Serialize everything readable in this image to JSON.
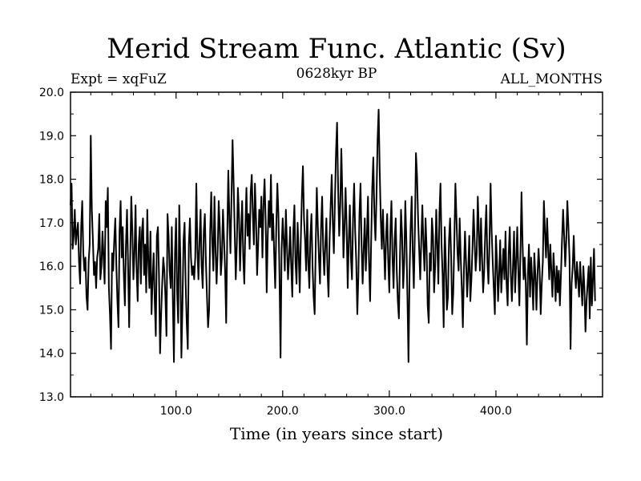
{
  "chart_data": {
    "type": "line",
    "title": "Merid Stream Func. Atlantic (Sv)",
    "subtitle_left": "Expt = xqFuZ",
    "subtitle_center": "0628kyr BP",
    "subtitle_right": "ALL_MONTHS",
    "xlabel": "Time (in years since start)",
    "ylabel": "",
    "xlim": [
      1,
      500
    ],
    "ylim": [
      13.0,
      20.0
    ],
    "x_ticks": [
      100,
      200,
      300,
      400
    ],
    "x_tick_labels": [
      "100.0",
      "200.0",
      "300.0",
      "400.0"
    ],
    "y_ticks": [
      13,
      14,
      15,
      16,
      17,
      18,
      19,
      20
    ],
    "y_tick_labels": [
      "13.0",
      "14.0",
      "15.0",
      "16.0",
      "17.0",
      "18.0",
      "19.0",
      "20.0"
    ],
    "grid": false,
    "color": "#000000",
    "series": [
      {
        "name": "Merid Stream Func. Atlantic",
        "x_start": 1,
        "x_step": 1,
        "values": [
          17.4,
          17.9,
          16.4,
          16.7,
          17.3,
          16.5,
          16.8,
          17.0,
          16.1,
          15.6,
          16.9,
          17.5,
          16.3,
          15.9,
          16.2,
          15.3,
          15.0,
          16.1,
          16.5,
          19.0,
          17.3,
          16.6,
          15.8,
          16.1,
          15.5,
          16.2,
          16.4,
          17.2,
          15.7,
          16.0,
          16.8,
          16.2,
          15.6,
          17.5,
          16.9,
          17.8,
          15.5,
          14.9,
          14.1,
          16.3,
          15.9,
          16.6,
          17.1,
          16.0,
          15.2,
          14.6,
          16.8,
          17.5,
          16.2,
          16.9,
          15.8,
          15.1,
          16.5,
          17.3,
          16.0,
          14.6,
          16.2,
          17.6,
          16.8,
          15.7,
          16.3,
          17.4,
          15.9,
          15.2,
          16.5,
          16.9,
          15.6,
          16.8,
          17.1,
          15.8,
          16.5,
          15.4,
          17.3,
          16.1,
          15.5,
          16.8,
          14.9,
          15.7,
          16.3,
          15.2,
          14.4,
          16.7,
          16.9,
          15.8,
          14.0,
          14.9,
          15.6,
          16.2,
          15.9,
          15.3,
          14.4,
          17.2,
          16.7,
          15.9,
          15.5,
          16.9,
          15.2,
          13.8,
          16.3,
          17.1,
          15.4,
          14.7,
          17.4,
          16.2,
          13.9,
          15.1,
          16.6,
          17.0,
          15.6,
          14.7,
          14.1,
          16.5,
          17.1,
          16.2,
          15.8,
          16.0,
          15.7,
          16.2,
          17.9,
          16.4,
          15.7,
          16.6,
          17.3,
          16.0,
          15.5,
          16.8,
          17.2,
          16.1,
          15.3,
          14.6,
          15.0,
          16.8,
          17.7,
          16.5,
          15.9,
          17.6,
          16.4,
          15.6,
          16.3,
          17.5,
          16.9,
          15.8,
          16.2,
          17.3,
          16.6,
          15.9,
          14.7,
          16.7,
          18.2,
          17.1,
          16.3,
          17.6,
          18.9,
          17.9,
          16.8,
          15.7,
          16.5,
          17.8,
          17.2,
          15.9,
          16.8,
          17.5,
          16.2,
          15.6,
          16.9,
          17.8,
          16.7,
          17.2,
          16.4,
          17.7,
          18.1,
          17.2,
          16.5,
          17.9,
          17.1,
          15.8,
          16.5,
          17.3,
          16.9,
          17.6,
          16.2,
          17.4,
          18.0,
          17.1,
          15.4,
          16.7,
          17.5,
          16.9,
          18.1,
          16.6,
          17.2,
          16.3,
          15.5,
          16.9,
          17.9,
          17.2,
          15.8,
          13.9,
          16.4,
          17.1,
          16.6,
          15.9,
          17.3,
          16.5,
          15.7,
          16.2,
          16.9,
          16.0,
          15.3,
          16.8,
          17.4,
          16.1,
          15.6,
          17.0,
          16.3,
          15.4,
          16.6,
          17.6,
          18.3,
          17.1,
          16.6,
          15.9,
          17.3,
          16.1,
          15.5,
          16.7,
          17.2,
          16.0,
          15.3,
          14.9,
          16.5,
          17.8,
          16.9,
          16.2,
          15.6,
          16.9,
          17.6,
          16.4,
          15.8,
          16.5,
          17.1,
          15.9,
          15.3,
          16.6,
          17.4,
          18.1,
          17.0,
          16.3,
          17.5,
          18.6,
          19.3,
          17.8,
          16.7,
          17.4,
          18.7,
          17.6,
          16.2,
          16.9,
          17.8,
          16.9,
          15.5,
          16.6,
          17.4,
          16.2,
          15.7,
          17.1,
          17.9,
          16.8,
          16.1,
          14.9,
          15.8,
          17.2,
          17.9,
          16.5,
          15.6,
          16.4,
          17.1,
          15.9,
          16.7,
          17.6,
          16.1,
          15.2,
          16.6,
          17.8,
          18.5,
          17.2,
          16.6,
          17.6,
          18.9,
          19.6,
          18.2,
          17.1,
          16.4,
          17.3,
          16.5,
          15.7,
          16.7,
          17.2,
          16.1,
          15.4,
          16.8,
          17.5,
          16.2,
          15.5,
          16.6,
          17.1,
          15.9,
          15.2,
          14.8,
          16.2,
          17.3,
          16.7,
          15.5,
          16.1,
          17.5,
          16.6,
          15.3,
          13.8,
          15.8,
          16.9,
          17.6,
          16.3,
          15.5,
          16.8,
          18.6,
          18.1,
          17.1,
          16.4,
          15.7,
          16.6,
          17.4,
          16.5,
          15.9,
          17.1,
          16.4,
          15.1,
          14.7,
          16.3,
          15.9,
          17.1,
          16.7,
          15.4,
          16.0,
          17.3,
          16.5,
          15.6,
          17.2,
          17.9,
          16.5,
          15.8,
          14.6,
          16.9,
          16.1,
          15.0,
          15.3,
          16.6,
          17.1,
          16.2,
          14.9,
          15.4,
          16.6,
          17.9,
          17.1,
          16.3,
          15.9,
          17.1,
          16.2,
          15.5,
          14.6,
          15.9,
          16.8,
          16.1,
          15.3,
          15.9,
          16.7,
          15.2,
          15.7,
          16.4,
          17.3,
          16.6,
          15.9,
          16.3,
          17.6,
          16.8,
          15.9,
          17.1,
          16.2,
          15.4,
          15.9,
          16.8,
          17.4,
          16.1,
          15.6,
          16.6,
          17.9,
          16.8,
          16.1,
          15.5,
          14.9,
          16.7,
          16.1,
          15.2,
          15.8,
          16.6,
          15.4,
          15.9,
          16.4,
          15.7,
          16.8,
          15.6,
          15.1,
          16.3,
          16.9,
          15.8,
          15.2,
          16.0,
          16.8,
          15.4,
          16.1,
          16.9,
          15.9,
          15.1,
          16.3,
          17.7,
          16.5,
          15.7,
          16.2,
          15.6,
          14.2,
          15.8,
          16.5,
          15.3,
          16.2,
          15.7,
          15.0,
          16.3,
          15.8,
          15.0,
          15.8,
          16.4,
          15.9,
          14.9,
          15.6,
          16.1,
          17.5,
          16.8,
          16.2,
          17.1,
          16.4,
          15.7,
          16.5,
          15.9,
          15.3,
          16.3,
          15.8,
          15.2,
          16.0,
          15.4,
          15.9,
          15.1,
          15.8,
          16.6,
          17.3,
          16.7,
          16.0,
          16.6,
          17.5,
          16.9,
          16.2,
          14.1,
          15.6,
          16.0,
          16.7,
          15.9,
          15.5,
          16.1,
          15.7,
          15.3,
          16.1,
          15.6,
          15.1,
          16.0,
          15.5,
          14.5,
          15.2,
          15.6,
          16.0,
          14.8,
          16.2,
          15.1,
          15.7,
          16.4,
          15.2
        ]
      }
    ]
  }
}
